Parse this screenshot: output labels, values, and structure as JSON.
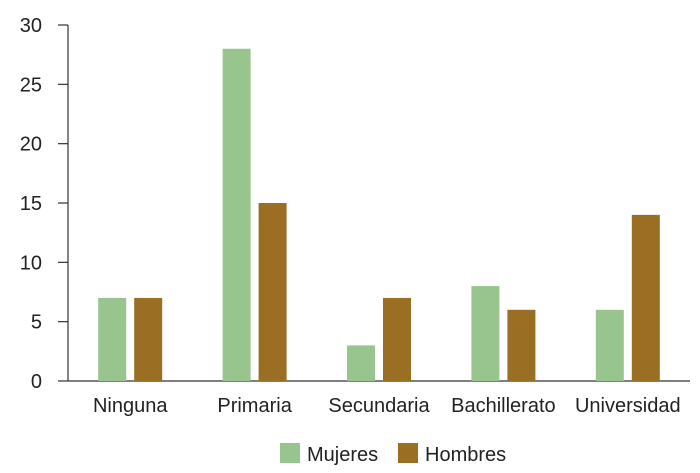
{
  "chart_data": {
    "type": "bar",
    "title": "",
    "xlabel": "",
    "ylabel": "",
    "ylim": [
      0,
      30
    ],
    "yticks": [
      0,
      5,
      10,
      15,
      20,
      25,
      30
    ],
    "grid": false,
    "legend_position": "bottom-center",
    "categories": [
      "Ninguna",
      "Primaria",
      "Secundaria",
      "Bachillerato",
      "Universidad"
    ],
    "series": [
      {
        "name": "Mujeres",
        "color": "#98c58e",
        "values": [
          7,
          28,
          3,
          8,
          6
        ]
      },
      {
        "name": "Hombres",
        "color": "#9a6e23",
        "values": [
          7,
          15,
          7,
          6,
          14
        ]
      }
    ]
  }
}
